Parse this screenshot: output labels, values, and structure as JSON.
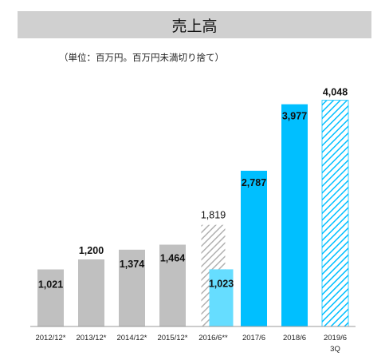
{
  "title": "売上高",
  "unit_note": "（単位：百万円。百万円未満切り捨て）",
  "colors": {
    "history": "#c0c0c0",
    "projection_hatch": "#b0b0b0",
    "half_year": "#66ddff",
    "actual": "#00bfff",
    "forecast_hatch": "#00bfff",
    "axis": "#999999",
    "title_bg": "#d0d0d0"
  },
  "chart_data": {
    "type": "bar",
    "title": "売上高",
    "xlabel": "",
    "ylabel": "",
    "ylim": [
      0,
      4200
    ],
    "grid": false,
    "legend": "none",
    "categories": [
      "2012/12*",
      "2013/12*",
      "2014/12*",
      "2015/12*",
      "2016/6**",
      "2017/6",
      "2018/6",
      "2019/6\n3Q"
    ],
    "bars": [
      {
        "category": "2012/12*",
        "value": 1021,
        "label": "1,021",
        "style": "history"
      },
      {
        "category": "2013/12*",
        "value": 1200,
        "label": "1,200",
        "style": "history"
      },
      {
        "category": "2014/12*",
        "value": 1374,
        "label": "1,374",
        "style": "history"
      },
      {
        "category": "2015/12*",
        "value": 1464,
        "label": "1,464",
        "style": "history"
      },
      {
        "category": "2016/6**",
        "value": 1819,
        "label": "1,819",
        "style": "projection_hatch",
        "label_bold": false
      },
      {
        "category": "2016/6**",
        "value": 1023,
        "label": "1,023",
        "style": "half_year"
      },
      {
        "category": "2017/6",
        "value": 2787,
        "label": "2,787",
        "style": "actual"
      },
      {
        "category": "2018/6",
        "value": 3977,
        "label": "3,977",
        "style": "actual"
      },
      {
        "category": "2019/6\n3Q",
        "value": 4048,
        "label": "4,048",
        "style": "forecast_hatch"
      }
    ]
  }
}
